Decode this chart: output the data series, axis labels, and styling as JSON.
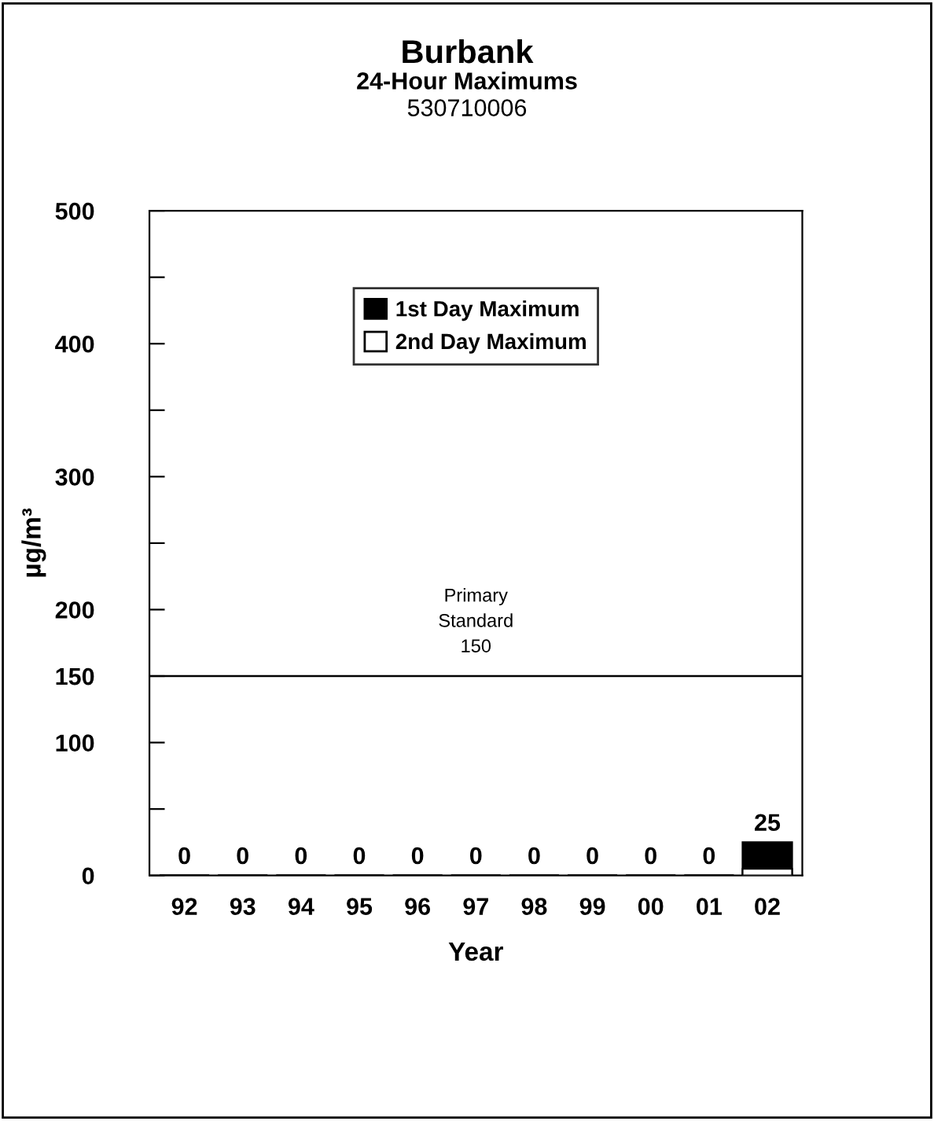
{
  "chart_data": {
    "type": "bar",
    "title": "Burbank",
    "subtitle": "24-Hour Maximums\n530710006",
    "xlabel": "Year",
    "ylabel": "µg/m³",
    "categories": [
      "92",
      "93",
      "94",
      "95",
      "96",
      "97",
      "98",
      "99",
      "00",
      "01",
      "02"
    ],
    "series": [
      {
        "name": "1st Day Maximum",
        "color": "#000000",
        "values": [
          0,
          0,
          0,
          0,
          0,
          0,
          0,
          0,
          0,
          0,
          25
        ],
        "value_labels": [
          "0",
          "0",
          "0",
          "0",
          "0",
          "0",
          "0",
          "0",
          "0",
          "0",
          "25"
        ]
      },
      {
        "name": "2nd Day Maximum",
        "color": "#ffffff",
        "values": [
          0,
          0,
          0,
          0,
          0,
          0,
          0,
          0,
          0,
          0,
          5
        ]
      }
    ],
    "ylim": [
      0,
      500
    ],
    "yticks": [
      0,
      {
        "value": 50,
        "label": null
      },
      100,
      150,
      200,
      {
        "value": 250,
        "label": null
      },
      300,
      {
        "value": 350,
        "label": null
      },
      400,
      {
        "value": 450,
        "label": null
      },
      500
    ],
    "ref_lines": [
      {
        "axis": "y",
        "value": 150,
        "label": "Primary\nStandard\n150",
        "color": "#000000"
      }
    ],
    "legend": "top",
    "grid": false
  }
}
